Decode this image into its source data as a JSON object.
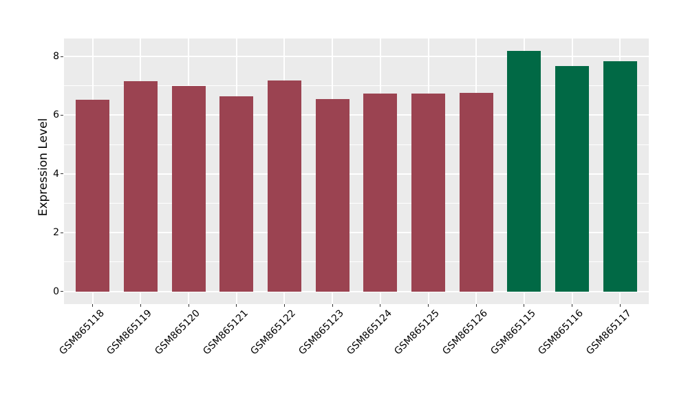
{
  "figure": {
    "background": "#ffffff",
    "panel_background": "#ebebeb",
    "gridline_color": "#ffffff",
    "tick_mark_color": "#333333",
    "text_color": "#000000"
  },
  "chart_data": {
    "type": "bar",
    "title": "",
    "xlabel": "",
    "ylabel": "Expression Level",
    "categories": [
      "GSM865118",
      "GSM865119",
      "GSM865120",
      "GSM865121",
      "GSM865122",
      "GSM865123",
      "GSM865124",
      "GSM865125",
      "GSM865126",
      "GSM865115",
      "GSM865116",
      "GSM865117"
    ],
    "values": [
      6.52,
      7.15,
      6.99,
      6.65,
      7.17,
      6.55,
      6.73,
      6.73,
      6.76,
      8.19,
      7.68,
      7.83
    ],
    "bar_colors": [
      "#9b4351",
      "#9b4351",
      "#9b4351",
      "#9b4351",
      "#9b4351",
      "#9b4351",
      "#9b4351",
      "#9b4351",
      "#9b4351",
      "#016945",
      "#016945",
      "#016945"
    ],
    "group_colors": {
      "red_group": "#9b4351",
      "green_group": "#016945"
    },
    "yticks": [
      0,
      2,
      4,
      6,
      8
    ],
    "yticks_minor": [
      1,
      3,
      5,
      7
    ],
    "ylim": [
      -0.43,
      8.61
    ],
    "grid": "major-and-minor-horizontal, major-vertical-at-category-centers",
    "legend": "none",
    "x_tick_rotation_deg": 45,
    "bar_relative_width": 0.7
  }
}
